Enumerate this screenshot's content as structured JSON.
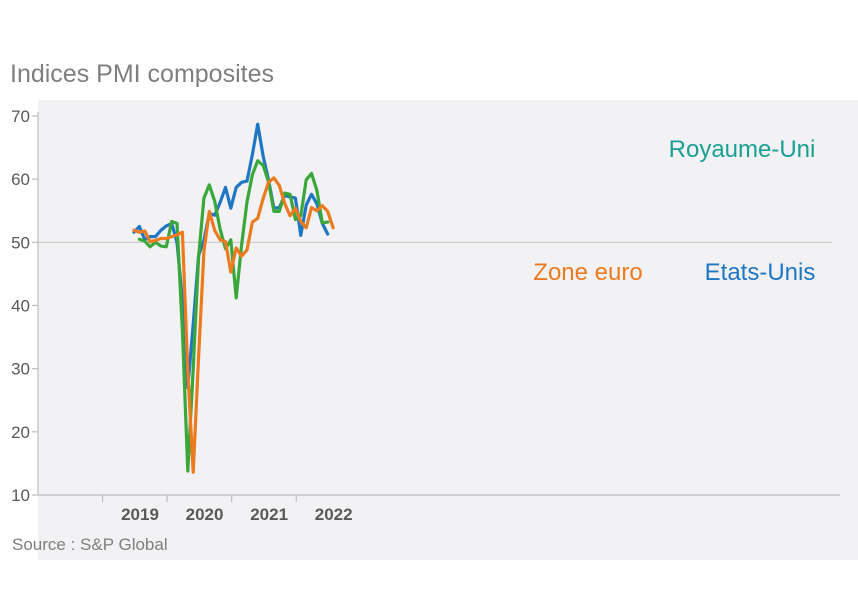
{
  "chart_data": {
    "type": "line",
    "title": "Indices PMI composites",
    "source": "Source : S&P Global",
    "xlabel": "",
    "ylabel": "",
    "ylim": [
      10,
      70
    ],
    "yticks": [
      10,
      20,
      30,
      40,
      50,
      60,
      70
    ],
    "reference_line": 50,
    "x_tick_labels": [
      "2019",
      "2020",
      "2021",
      "2022"
    ],
    "x_start": "2019-01",
    "series": [
      {
        "name": "Etats-Unis",
        "color": "#1f77c4",
        "label_position": "right-middle",
        "values": [
          51.6,
          52.5,
          50.4,
          50.9,
          50.9,
          51.9,
          52.6,
          53.0,
          50.0,
          40.9,
          27.0,
          37.0,
          47.9,
          50.3,
          54.6,
          54.3,
          56.3,
          58.7,
          55.4,
          58.7,
          59.5,
          59.7,
          63.9,
          68.7,
          63.7,
          59.9,
          55.4,
          55.5,
          57.4,
          57.2,
          57.0,
          51.1,
          55.9,
          57.6,
          56.1,
          53.0,
          51.3
        ],
        "start_index": 0
      },
      {
        "name": "Zone euro",
        "color": "#ec7a1f",
        "label_position": "center-middle",
        "values": [
          51.9,
          51.6,
          51.8,
          50.1,
          50.3,
          50.6,
          50.6,
          50.9,
          51.2,
          51.6,
          29.7,
          13.6,
          31.9,
          48.5,
          54.9,
          51.9,
          50.4,
          50.1,
          45.3,
          49.1,
          47.8,
          48.8,
          53.2,
          53.8,
          56.9,
          59.5,
          60.2,
          59.0,
          56.2,
          54.2,
          55.4,
          53.3,
          52.3,
          55.5,
          55.0,
          55.8,
          54.9,
          52.3
        ],
        "start_index": 0
      },
      {
        "name": "Royaume-Uni",
        "color": "#3aa73a",
        "label_color": "#1aa093",
        "label_position": "top-right",
        "values": [
          50.5,
          50.2,
          49.3,
          50.0,
          49.4,
          49.3,
          53.3,
          53.0,
          36.0,
          13.8,
          30.0,
          47.7,
          57.0,
          59.1,
          56.5,
          52.1,
          49.0,
          50.4,
          41.2,
          49.6,
          56.4,
          60.7,
          62.9,
          62.2,
          59.6,
          54.9,
          54.9,
          57.8,
          57.6,
          53.6,
          54.2,
          59.9,
          60.9,
          58.2,
          53.1,
          53.2
        ],
        "start_index": 1
      }
    ]
  }
}
